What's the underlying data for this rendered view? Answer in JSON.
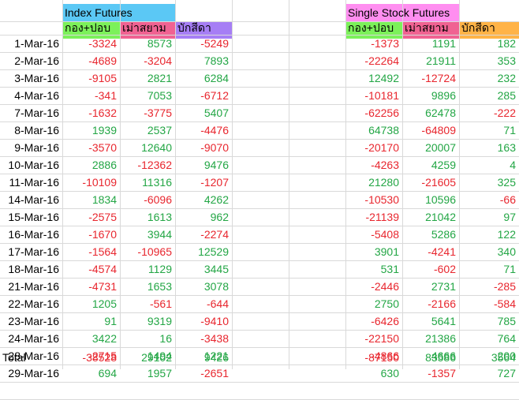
{
  "colors": {
    "index_header_bg": "#5bc8f5",
    "single_header_bg": "#ff8ef0",
    "col_fund_bg": "#7cf15a",
    "col_foreign_bg": "#f06292",
    "col_foreign_single_bg": "#f06292",
    "col_broker_bg": "#a67ef5",
    "col_broker_single_bg": "#ffb347",
    "neg": "#e8262e",
    "pos": "#23a645"
  },
  "headers": {
    "index_title": "Index Futures",
    "single_title": "Single Stock Futures",
    "fund": "กอง+ปอบ",
    "foreign": "เม่าสยาม",
    "broker": "บักสีดา"
  },
  "rows": [
    {
      "date": "1-Mar-16",
      "i": [
        -3324,
        8573,
        -5249
      ],
      "s": [
        -1373,
        1191,
        182
      ]
    },
    {
      "date": "2-Mar-16",
      "i": [
        -4689,
        -3204,
        7893
      ],
      "s": [
        -22264,
        21911,
        353
      ]
    },
    {
      "date": "3-Mar-16",
      "i": [
        -9105,
        2821,
        6284
      ],
      "s": [
        12492,
        -12724,
        232
      ]
    },
    {
      "date": "4-Mar-16",
      "i": [
        -341,
        7053,
        -6712
      ],
      "s": [
        -10181,
        9896,
        285
      ]
    },
    {
      "date": "7-Mar-16",
      "i": [
        -1632,
        -3775,
        5407
      ],
      "s": [
        -62256,
        62478,
        -222
      ]
    },
    {
      "date": "8-Mar-16",
      "i": [
        1939,
        2537,
        -4476
      ],
      "s": [
        64738,
        -64809,
        71
      ]
    },
    {
      "date": "9-Mar-16",
      "i": [
        -3570,
        12640,
        -9070
      ],
      "s": [
        -20170,
        20007,
        163
      ]
    },
    {
      "date": "10-Mar-16",
      "i": [
        2886,
        -12362,
        9476
      ],
      "s": [
        -4263,
        4259,
        4
      ]
    },
    {
      "date": "11-Mar-16",
      "i": [
        -10109,
        11316,
        -1207
      ],
      "s": [
        21280,
        -21605,
        325
      ]
    },
    {
      "date": "14-Mar-16",
      "i": [
        1834,
        -6096,
        4262
      ],
      "s": [
        -10530,
        10596,
        -66
      ]
    },
    {
      "date": "15-Mar-16",
      "i": [
        -2575,
        1613,
        962
      ],
      "s": [
        -21139,
        21042,
        97
      ]
    },
    {
      "date": "16-Mar-16",
      "i": [
        -1670,
        3944,
        -2274
      ],
      "s": [
        -5408,
        5286,
        122
      ]
    },
    {
      "date": "17-Mar-16",
      "i": [
        -1564,
        -10965,
        12529
      ],
      "s": [
        3901,
        -4241,
        340
      ]
    },
    {
      "date": "18-Mar-16",
      "i": [
        -4574,
        1129,
        3445
      ],
      "s": [
        531,
        -602,
        71
      ]
    },
    {
      "date": "21-Mar-16",
      "i": [
        -4731,
        1653,
        3078
      ],
      "s": [
        -2446,
        2731,
        -285
      ]
    },
    {
      "date": "22-Mar-16",
      "i": [
        1205,
        -561,
        -644
      ],
      "s": [
        2750,
        -2166,
        -584
      ]
    },
    {
      "date": "23-Mar-16",
      "i": [
        91,
        9319,
        -9410
      ],
      "s": [
        -6426,
        5641,
        785
      ]
    },
    {
      "date": "24-Mar-16",
      "i": [
        3422,
        16,
        -3438
      ],
      "s": [
        -22150,
        21386,
        764
      ]
    },
    {
      "date": "28-Mar-16",
      "i": [
        -2715,
        1494,
        1221
      ],
      "s": [
        -4866,
        4666,
        200
      ]
    },
    {
      "date": "29-Mar-16",
      "i": [
        694,
        1957,
        -2651
      ],
      "s": [
        630,
        -1357,
        727
      ]
    }
  ],
  "total": {
    "label": "Total",
    "i": [
      -38528,
      29102,
      9426
    ],
    "s": [
      -87150,
      83586,
      3564
    ]
  }
}
